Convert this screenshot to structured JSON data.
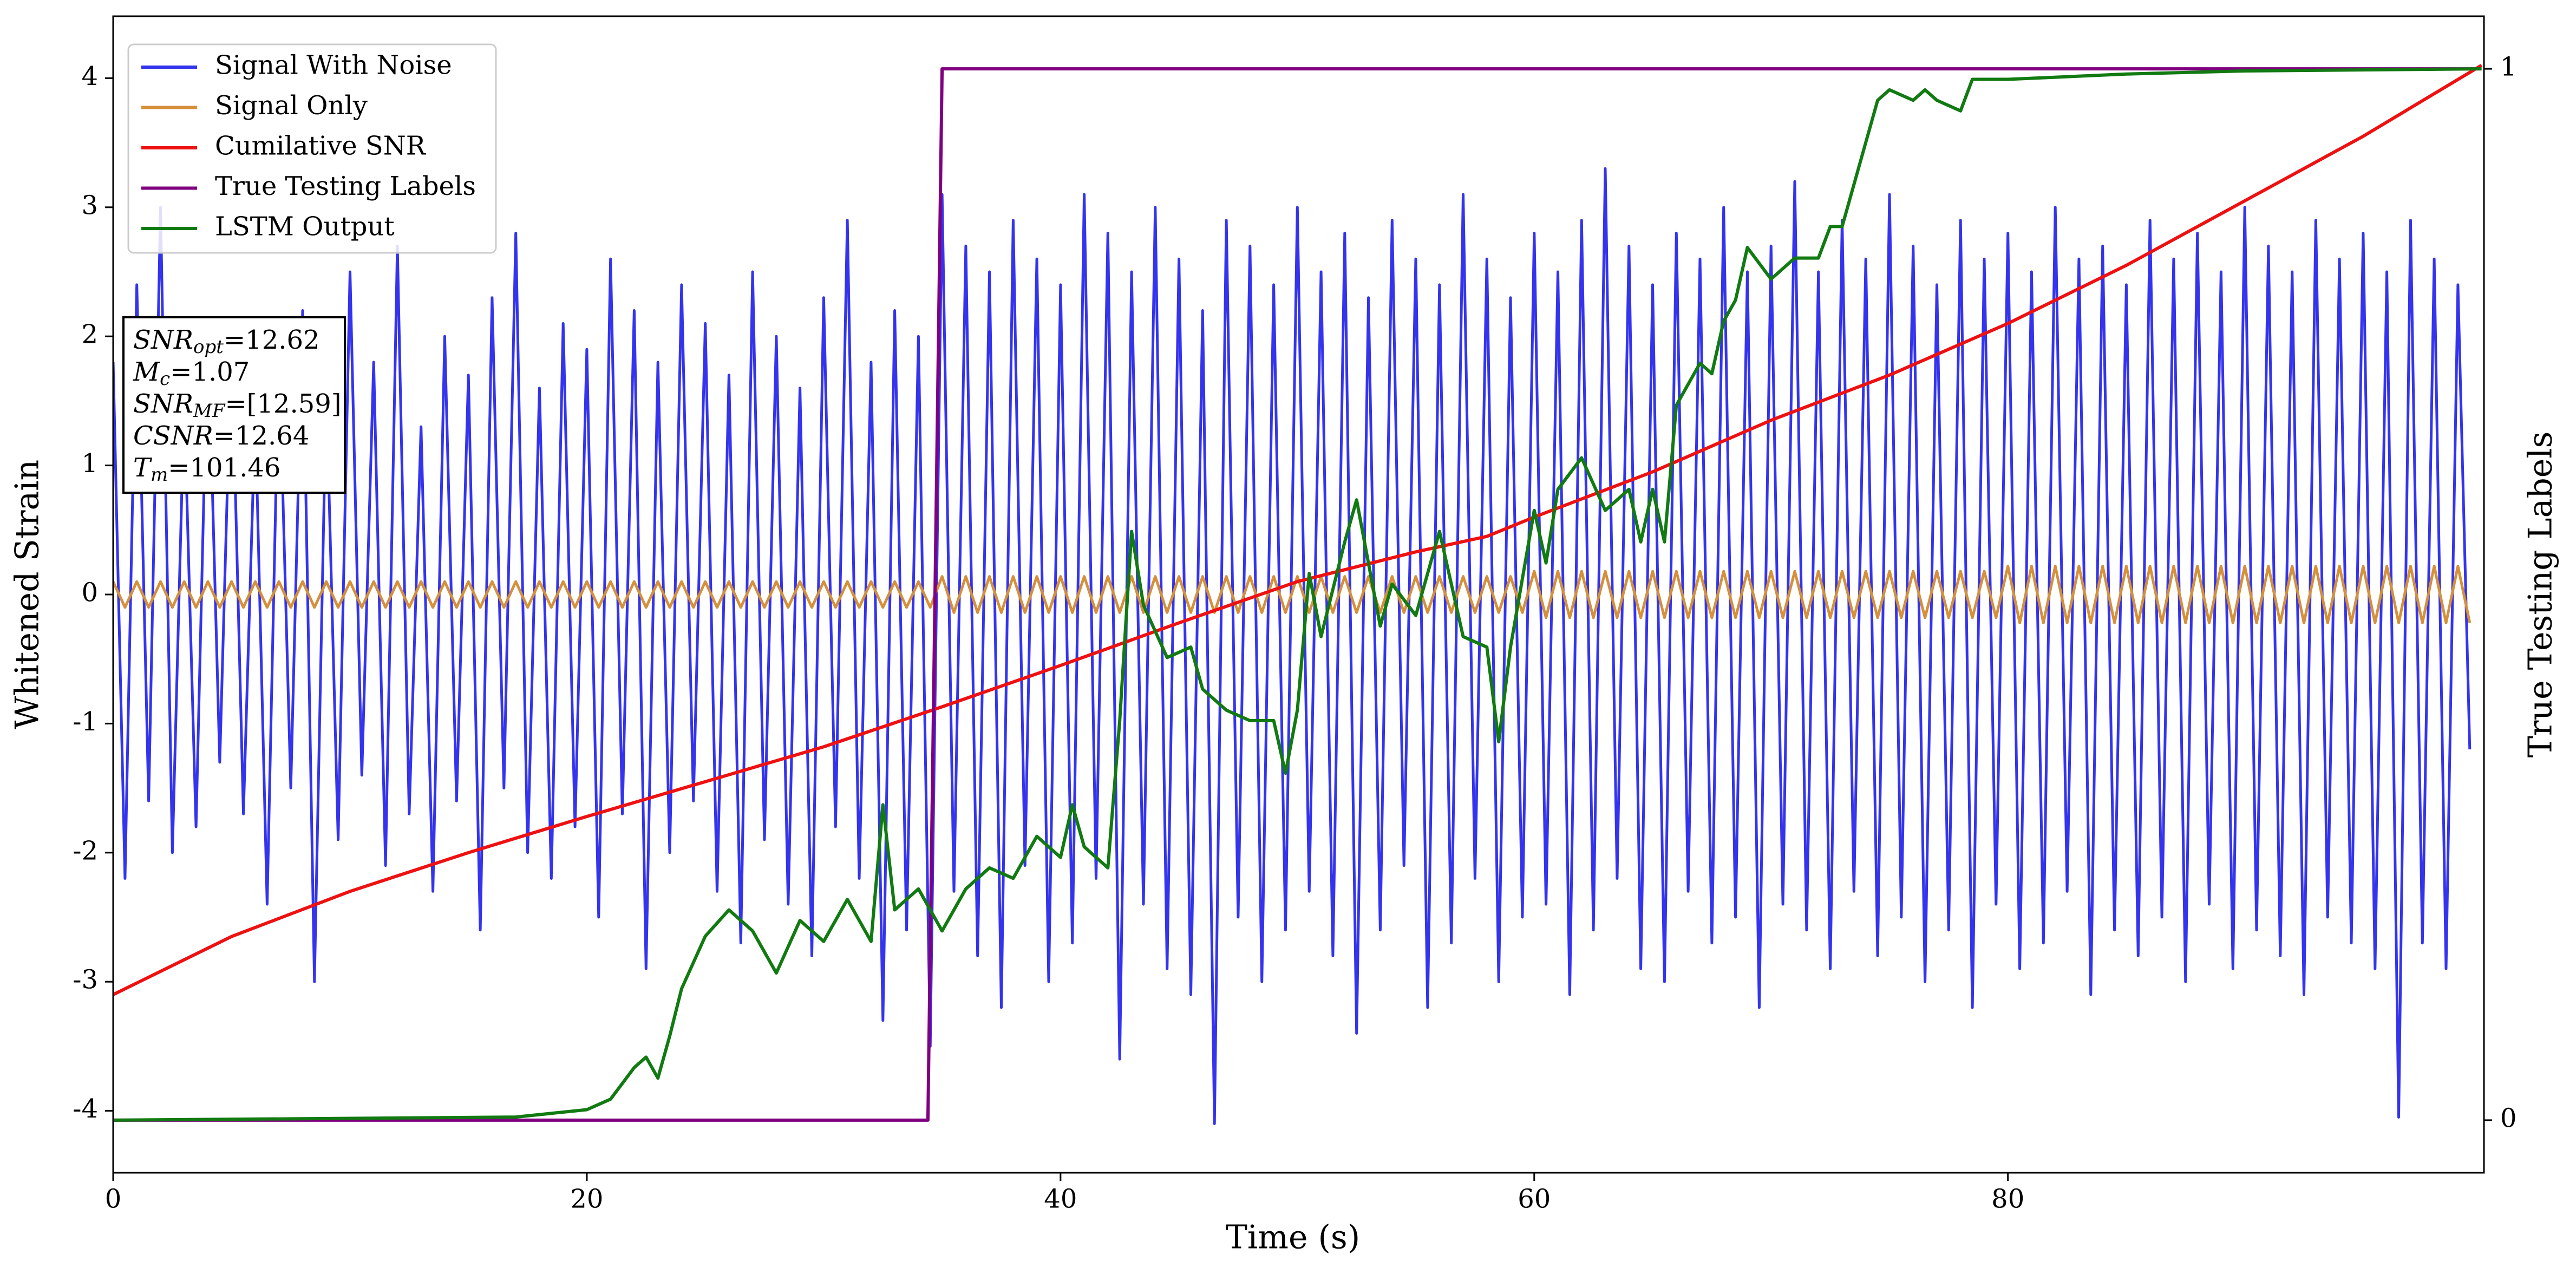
{
  "chart_data": {
    "type": "line",
    "xlabel": "Time (s)",
    "ylabel": "Whitened Strain",
    "y2label": "True Testing Labels",
    "xlim": [
      0,
      100.1
    ],
    "ylim": [
      -4.48,
      4.48
    ],
    "y2lim": [
      -0.05,
      1.05
    ],
    "xticks": [
      0,
      20,
      40,
      60,
      80
    ],
    "yticks": [
      -4,
      -3,
      -2,
      -1,
      0,
      1,
      2,
      3,
      4
    ],
    "y2ticks": [
      0,
      1
    ],
    "legend": "upper left",
    "x": [
      0,
      0.5,
      1,
      1.5,
      2,
      2.5,
      3,
      3.5,
      4,
      4.5,
      5,
      5.5,
      6,
      6.5,
      7,
      7.5,
      8,
      8.5,
      9,
      9.5,
      10,
      10.5,
      11,
      11.5,
      12,
      12.5,
      13,
      13.5,
      14,
      14.5,
      15,
      15.5,
      16,
      16.5,
      17,
      17.5,
      18,
      18.5,
      19,
      19.5,
      20,
      20.5,
      21,
      21.5,
      22,
      22.5,
      23,
      23.5,
      24,
      24.5,
      25,
      25.5,
      26,
      26.5,
      27,
      27.5,
      28,
      28.5,
      29,
      29.5,
      30,
      30.5,
      31,
      31.5,
      32,
      32.5,
      33,
      33.5,
      34,
      34.5,
      35,
      35.5,
      36,
      36.5,
      37,
      37.5,
      38,
      38.5,
      39,
      39.5,
      40,
      40.5,
      41,
      41.5,
      42,
      42.5,
      43,
      43.5,
      44,
      44.5,
      45,
      45.5,
      46,
      46.5,
      47,
      47.5,
      48,
      48.5,
      49,
      49.5,
      50,
      50.5,
      51,
      51.5,
      52,
      52.5,
      53,
      53.5,
      54,
      54.5,
      55,
      55.5,
      56,
      56.5,
      57,
      57.5,
      58,
      58.5,
      59,
      59.5,
      60,
      60.5,
      61,
      61.5,
      62,
      62.5,
      63,
      63.5,
      64,
      64.5,
      65,
      65.5,
      66,
      66.5,
      67,
      67.5,
      68,
      68.5,
      69,
      69.5,
      70,
      70.5,
      71,
      71.5,
      72,
      72.5,
      73,
      73.5,
      74,
      74.5,
      75,
      75.5,
      76,
      76.5,
      77,
      77.5,
      78,
      78.5,
      79,
      79.5,
      80,
      80.5,
      81,
      81.5,
      82,
      82.5,
      83,
      83.5,
      84,
      84.5,
      85,
      85.5,
      86,
      86.5,
      87,
      87.5,
      88,
      88.5,
      89,
      89.5,
      90,
      90.5,
      91,
      91.5,
      92,
      92.5,
      93,
      93.5,
      94,
      94.5,
      95,
      95.5,
      96,
      96.5,
      97,
      97.5,
      98,
      98.5,
      99,
      99.5
    ],
    "series": [
      {
        "name": "Signal With Noise",
        "color": "#3434ee",
        "values": [
          1.8,
          -2.2,
          2.4,
          -1.6,
          3.0,
          -2.0,
          1.5,
          -1.8,
          2.1,
          -1.3,
          2.0,
          -1.7,
          1.4,
          -2.4,
          1.9,
          -1.5,
          2.2,
          -3.0,
          1.6,
          -1.9,
          2.5,
          -1.4,
          1.8,
          -2.1,
          2.7,
          -1.7,
          1.3,
          -2.3,
          2.0,
          -1.6,
          1.7,
          -2.6,
          2.3,
          -1.5,
          2.8,
          -2.0,
          1.6,
          -2.2,
          2.1,
          -1.8,
          1.9,
          -2.5,
          2.6,
          -1.7,
          2.2,
          -2.9,
          1.8,
          -2.0,
          2.4,
          -1.6,
          2.1,
          -2.3,
          1.7,
          -2.7,
          2.5,
          -1.9,
          2.0,
          -2.4,
          1.6,
          -2.8,
          2.3,
          -1.8,
          2.9,
          -2.2,
          1.8,
          -3.3,
          2.2,
          -2.6,
          2.0,
          -3.5,
          3.1,
          -2.3,
          2.7,
          -2.8,
          2.5,
          -3.2,
          2.9,
          -2.1,
          2.6,
          -3.0,
          2.4,
          -2.7,
          3.1,
          -2.2,
          2.8,
          -3.6,
          2.5,
          -2.4,
          3.0,
          -2.9,
          2.6,
          -3.1,
          2.2,
          -4.1,
          2.9,
          -2.5,
          2.7,
          -3.0,
          2.4,
          -2.6,
          3.0,
          -2.3,
          2.5,
          -2.8,
          2.8,
          -3.4,
          2.3,
          -2.6,
          2.9,
          -2.1,
          2.6,
          -3.2,
          2.4,
          -2.7,
          3.1,
          -2.2,
          2.6,
          -3.0,
          2.3,
          -2.5,
          2.8,
          -2.4,
          2.5,
          -3.1,
          2.9,
          -2.6,
          3.3,
          -2.2,
          2.7,
          -2.9,
          2.4,
          -3.0,
          2.8,
          -2.3,
          2.6,
          -2.7,
          3.0,
          -2.5,
          2.5,
          -3.2,
          2.7,
          -2.4,
          3.2,
          -2.6,
          2.5,
          -2.9,
          2.9,
          -2.3,
          2.6,
          -2.8,
          3.1,
          -2.5,
          2.7,
          -3.0,
          2.4,
          -2.6,
          2.9,
          -3.2,
          2.6,
          -2.4,
          2.8,
          -2.9,
          2.5,
          -2.7,
          3.0,
          -2.3,
          2.6,
          -3.1,
          2.7,
          -2.6,
          2.4,
          -2.8,
          2.9,
          -2.5,
          2.6,
          -3.0,
          2.8,
          -2.4,
          2.5,
          -2.9,
          3.0,
          -2.6,
          2.7,
          -2.8,
          2.5,
          -3.1,
          2.9,
          -2.5,
          2.6,
          -2.7,
          2.8,
          -2.9,
          2.5,
          -4.05,
          2.9,
          -2.7,
          2.6,
          -2.9,
          2.4,
          -1.2
        ]
      },
      {
        "name": "Signal Only",
        "color": "#d4903a",
        "values": [
          0.1,
          -0.1,
          0.1,
          -0.1,
          0.1,
          -0.1,
          0.1,
          -0.1,
          0.1,
          -0.1,
          0.1,
          -0.1,
          0.1,
          -0.1,
          0.1,
          -0.1,
          0.1,
          -0.1,
          0.1,
          -0.1,
          0.1,
          -0.1,
          0.1,
          -0.1,
          0.1,
          -0.1,
          0.1,
          -0.1,
          0.1,
          -0.1,
          0.1,
          -0.1,
          0.1,
          -0.1,
          0.1,
          -0.1,
          0.1,
          -0.1,
          0.1,
          -0.1,
          0.1,
          -0.1,
          0.1,
          -0.1,
          0.1,
          -0.1,
          0.1,
          -0.1,
          0.1,
          -0.1,
          0.1,
          -0.1,
          0.1,
          -0.1,
          0.1,
          -0.1,
          0.1,
          -0.1,
          0.1,
          -0.1,
          0.1,
          -0.1,
          0.1,
          -0.1,
          0.1,
          -0.1,
          0.1,
          -0.1,
          0.1,
          -0.1,
          0.14,
          -0.14,
          0.14,
          -0.14,
          0.14,
          -0.14,
          0.14,
          -0.14,
          0.14,
          -0.14,
          0.14,
          -0.14,
          0.14,
          -0.14,
          0.14,
          -0.14,
          0.14,
          -0.14,
          0.14,
          -0.14,
          0.14,
          -0.14,
          0.14,
          -0.14,
          0.14,
          -0.14,
          0.14,
          -0.14,
          0.14,
          -0.14,
          0.14,
          -0.14,
          0.14,
          -0.14,
          0.14,
          -0.14,
          0.14,
          -0.14,
          0.14,
          -0.14,
          0.14,
          -0.14,
          0.14,
          -0.14,
          0.14,
          -0.14,
          0.14,
          -0.14,
          0.14,
          -0.14,
          0.18,
          -0.18,
          0.18,
          -0.18,
          0.18,
          -0.18,
          0.18,
          -0.18,
          0.18,
          -0.18,
          0.18,
          -0.18,
          0.18,
          -0.18,
          0.18,
          -0.18,
          0.18,
          -0.18,
          0.18,
          -0.18,
          0.18,
          -0.18,
          0.18,
          -0.18,
          0.18,
          -0.18,
          0.18,
          -0.18,
          0.18,
          -0.18,
          0.18,
          -0.18,
          0.18,
          -0.18,
          0.18,
          -0.18,
          0.18,
          -0.18,
          0.18,
          -0.18,
          0.22,
          -0.22,
          0.22,
          -0.22,
          0.22,
          -0.22,
          0.22,
          -0.22,
          0.22,
          -0.22,
          0.22,
          -0.22,
          0.22,
          -0.22,
          0.22,
          -0.22,
          0.22,
          -0.22,
          0.22,
          -0.22,
          0.22,
          -0.22,
          0.22,
          -0.22,
          0.22,
          -0.22,
          0.22,
          -0.22,
          0.22,
          -0.22,
          0.22,
          -0.22,
          0.22,
          -0.22,
          0.22,
          -0.22,
          0.22,
          -0.22,
          0.22,
          -0.22
        ]
      },
      {
        "name": "Cumilative SNR",
        "color": "#ee1111",
        "x": [
          0,
          5,
          10,
          15,
          20,
          25,
          30,
          35,
          40,
          45,
          50,
          55,
          58,
          60,
          65,
          70,
          75,
          80,
          85,
          90,
          95,
          100
        ],
        "values": [
          -3.1,
          -2.65,
          -2.3,
          -2.0,
          -1.72,
          -1.45,
          -1.18,
          -0.87,
          -0.55,
          -0.22,
          0.1,
          0.33,
          0.45,
          0.6,
          0.95,
          1.35,
          1.7,
          2.1,
          2.55,
          3.05,
          3.55,
          4.1
        ]
      },
      {
        "name": "True Testing Labels",
        "color": "#800080",
        "axis": "y2",
        "x": [
          0,
          34.4,
          35,
          100
        ],
        "values": [
          0,
          0,
          1,
          1
        ]
      },
      {
        "name": "LSTM Output",
        "color": "#117a11",
        "axis": "y2",
        "x": [
          0,
          17,
          20,
          21,
          22,
          22.5,
          23,
          23.5,
          24,
          25,
          26,
          27,
          28,
          29,
          30,
          31,
          32,
          32.5,
          33,
          34,
          35,
          36,
          37,
          38,
          39,
          40,
          40.5,
          41,
          42,
          42.5,
          43,
          43.5,
          44.5,
          45.5,
          46,
          47,
          48,
          49,
          49.5,
          50,
          50.5,
          51,
          52,
          52.5,
          53.5,
          54,
          55,
          56,
          57,
          58,
          58.5,
          59,
          60,
          60.5,
          61,
          62,
          63,
          64,
          64.5,
          65,
          65.5,
          66,
          67,
          67.5,
          68,
          68.5,
          69,
          70,
          71,
          72,
          72.5,
          73,
          74,
          74.5,
          75,
          76,
          76.5,
          77,
          78,
          78.5,
          80,
          85,
          90,
          100
        ],
        "values": [
          0,
          0.003,
          0.01,
          0.02,
          0.05,
          0.06,
          0.04,
          0.08,
          0.125,
          0.175,
          0.2,
          0.18,
          0.14,
          0.19,
          0.17,
          0.21,
          0.17,
          0.3,
          0.2,
          0.22,
          0.18,
          0.22,
          0.24,
          0.23,
          0.27,
          0.25,
          0.3,
          0.26,
          0.24,
          0.38,
          0.56,
          0.49,
          0.44,
          0.45,
          0.41,
          0.39,
          0.38,
          0.38,
          0.33,
          0.39,
          0.52,
          0.46,
          0.55,
          0.59,
          0.47,
          0.51,
          0.48,
          0.56,
          0.46,
          0.45,
          0.36,
          0.45,
          0.58,
          0.53,
          0.6,
          0.63,
          0.58,
          0.6,
          0.55,
          0.6,
          0.55,
          0.68,
          0.72,
          0.71,
          0.76,
          0.78,
          0.83,
          0.8,
          0.82,
          0.82,
          0.85,
          0.85,
          0.93,
          0.97,
          0.98,
          0.97,
          0.98,
          0.97,
          0.96,
          0.99,
          0.99,
          0.995,
          0.998,
          1.0
        ]
      }
    ],
    "annotation": [
      {
        "main": "SNR",
        "sub": "opt",
        "rest": "=12.62"
      },
      {
        "main": "M",
        "sub": "c",
        "rest": "=1.07"
      },
      {
        "main": "SNR",
        "sub": "MF",
        "rest": "=[12.59]"
      },
      {
        "main": "CSNR",
        "rest": "=12.64"
      },
      {
        "main": "T",
        "sub": "m",
        "rest": "=101.46"
      }
    ]
  }
}
